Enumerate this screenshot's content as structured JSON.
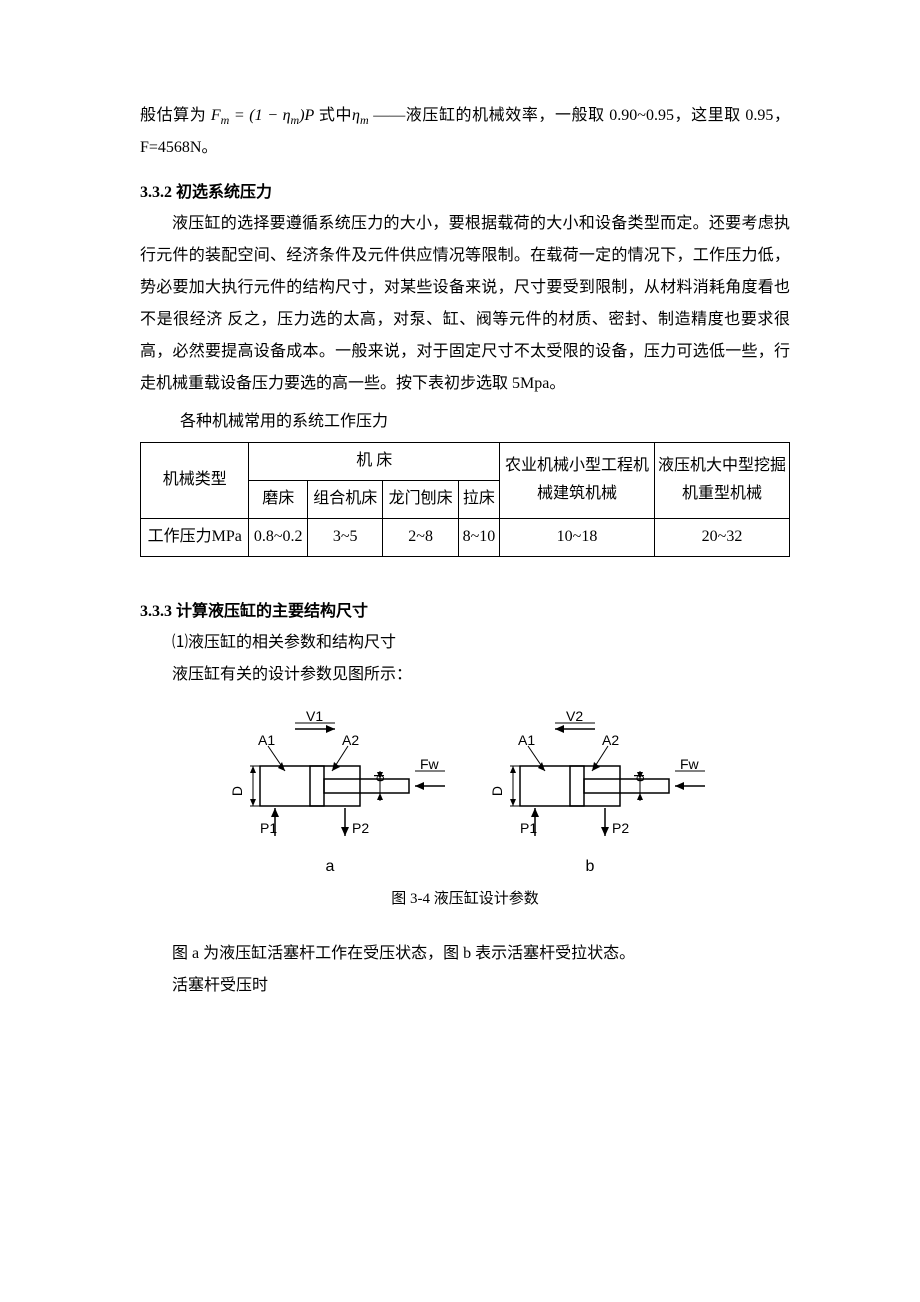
{
  "para1_a": "般估算为",
  "formula1_F": "F",
  "formula1_m": "m",
  "formula1_eq": " = (1 − ",
  "formula1_eta": "η",
  "formula1_close": ")P",
  "para1_b": "   式中",
  "para1_c": " ——液压缸的机械效率，一般取 0.90~0.95，这里取 0.95，F=4568N。",
  "heading332": "3.3.2 初选系统压力",
  "para332": "液压缸的选择要遵循系统压力的大小，要根据载荷的大小和设备类型而定。还要考虑执行元件的装配空间、经济条件及元件供应情况等限制。在载荷一定的情况下，工作压力低，势必要加大执行元件的结构尺寸，对某些设备来说，尺寸要受到限制，从材料消耗角度看也不是很经济 反之，压力选的太高，对泵、缸、阀等元件的材质、密封、制造精度也要求很高，必然要提高设备成本。一般来说，对于固定尺寸不太受限的设备，压力可选低一些，行走机械重载设备压力要选的高一些。按下表初步选取 5Mpa。",
  "table_caption": "各种机械常用的系统工作压力",
  "table": {
    "row1_col1": "机械类型",
    "row1_machine": "机           床",
    "row1_agri": "农业机械小型工程机械建筑机械",
    "row1_heavy": "液压机大中型挖掘机重型机械",
    "row2_a": "磨床",
    "row2_b": "组合机床",
    "row2_c": "龙门刨床",
    "row2_d": "拉床",
    "row3_label": "工作压力MPa",
    "row3_a": "0.8~0.2",
    "row3_b": "3~5",
    "row3_c": "2~8",
    "row3_d": "8~10",
    "row3_e": "10~18",
    "row3_f": "20~32"
  },
  "heading333": "3.3.3 计算液压缸的主要结构尺寸",
  "para333a": "⑴液压缸的相关参数和结构尺寸",
  "para333b": "液压缸有关的设计参数见图所示：",
  "figure": {
    "V1": "V1",
    "V2": "V2",
    "A1": "A1",
    "A2": "A2",
    "P1": "P1",
    "P2": "P2",
    "Fw": "Fw",
    "D": "D",
    "d": "d",
    "a": "a",
    "b": "b",
    "stroke": "#000000",
    "stroke_width": 1.5,
    "label_fontsize": 14
  },
  "fig_caption": "图 3-4  液压缸设计参数",
  "para_after_fig_a": "图 a 为液压缸活塞杆工作在受压状态，图 b 表示活塞杆受拉状态。",
  "para_after_fig_b": "活塞杆受压时"
}
